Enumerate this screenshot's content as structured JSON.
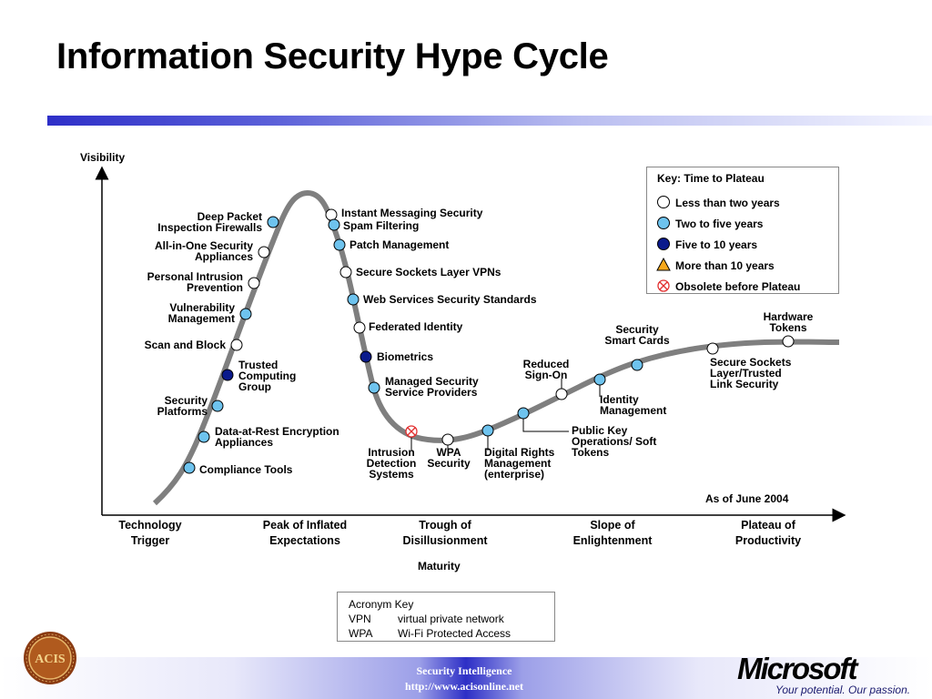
{
  "title": "Information Security Hype Cycle",
  "axes": {
    "y_label": "Visibility",
    "x_label": "Maturity",
    "as_of": "As of June 2004"
  },
  "phases": [
    {
      "line1": "Technology",
      "line2": "Trigger"
    },
    {
      "line1": "Peak of Inflated",
      "line2": "Expectations"
    },
    {
      "line1": "Trough of",
      "line2": "Disillusionment"
    },
    {
      "line1": "Slope of",
      "line2": "Enlightenment"
    },
    {
      "line1": "Plateau of",
      "line2": "Productivity"
    }
  ],
  "key": {
    "title": "Key: Time to Plateau",
    "items": [
      {
        "symbol": "white-circle-icon",
        "label": "Less than two years",
        "color": "#ffffff"
      },
      {
        "symbol": "light-blue-circle-icon",
        "label": "Two to five years",
        "color": "#6ec3ee"
      },
      {
        "symbol": "dark-blue-circle-icon",
        "label": "Five to 10 years",
        "color": "#0a1a8c"
      },
      {
        "symbol": "orange-triangle-icon",
        "label": "More than 10 years",
        "color": "#f7a81b"
      },
      {
        "symbol": "red-crossed-circle-icon",
        "label": "Obsolete before Plateau",
        "color": "#e23030"
      }
    ]
  },
  "technologies": [
    {
      "name": "Compliance Tools",
      "lines": [
        "Compliance Tools"
      ],
      "category": "two_to_five"
    },
    {
      "name": "Data-at-Rest Encryption Appliances",
      "lines": [
        "Data-at-Rest Encryption",
        "Appliances"
      ],
      "category": "two_to_five"
    },
    {
      "name": "Security Platforms",
      "lines": [
        "Security",
        "Platforms"
      ],
      "category": "two_to_five"
    },
    {
      "name": "Trusted Computing Group",
      "lines": [
        "Trusted",
        "Computing",
        "Group"
      ],
      "category": "five_to_ten"
    },
    {
      "name": "Scan and Block",
      "lines": [
        "Scan and Block"
      ],
      "category": "less_than_two"
    },
    {
      "name": "Vulnerability Management",
      "lines": [
        "Vulnerability",
        "Management"
      ],
      "category": "two_to_five"
    },
    {
      "name": "Personal Intrusion Prevention",
      "lines": [
        "Personal Intrusion",
        "Prevention"
      ],
      "category": "less_than_two"
    },
    {
      "name": "All-in-One Security Appliances",
      "lines": [
        "All-in-One Security",
        "Appliances"
      ],
      "category": "less_than_two"
    },
    {
      "name": "Deep Packet Inspection Firewalls",
      "lines": [
        "Deep Packet",
        "Inspection Firewalls"
      ],
      "category": "two_to_five"
    },
    {
      "name": "Instant Messaging Security",
      "lines": [
        "Instant Messaging Security"
      ],
      "category": "less_than_two"
    },
    {
      "name": "Spam Filtering",
      "lines": [
        "Spam Filtering"
      ],
      "category": "two_to_five"
    },
    {
      "name": "Patch Management",
      "lines": [
        "Patch Management"
      ],
      "category": "two_to_five"
    },
    {
      "name": "Secure Sockets Layer VPNs",
      "lines": [
        "Secure Sockets Layer VPNs"
      ],
      "category": "less_than_two"
    },
    {
      "name": "Web Services Security Standards",
      "lines": [
        "Web Services Security Standards"
      ],
      "category": "two_to_five"
    },
    {
      "name": "Federated Identity",
      "lines": [
        "Federated Identity"
      ],
      "category": "less_than_two"
    },
    {
      "name": "Biometrics",
      "lines": [
        "Biometrics"
      ],
      "category": "five_to_ten"
    },
    {
      "name": "Managed Security Service Providers",
      "lines": [
        "Managed Security",
        "Service Providers"
      ],
      "category": "two_to_five"
    },
    {
      "name": "Intrusion Detection Systems",
      "lines": [
        "Intrusion",
        "Detection",
        "Systems"
      ],
      "category": "obsolete"
    },
    {
      "name": "WPA Security",
      "lines": [
        "WPA",
        "Security"
      ],
      "category": "less_than_two"
    },
    {
      "name": "Digital Rights Management (enterprise)",
      "lines": [
        "Digital Rights",
        "Management",
        "(enterprise)"
      ],
      "category": "two_to_five"
    },
    {
      "name": "Public Key Operations/ Soft Tokens",
      "lines": [
        "Public Key",
        "Operations/ Soft",
        "Tokens"
      ],
      "category": "two_to_five"
    },
    {
      "name": "Reduced Sign-On",
      "lines": [
        "Reduced",
        "Sign-On"
      ],
      "category": "less_than_two"
    },
    {
      "name": "Identity Management",
      "lines": [
        "Identity",
        "Management"
      ],
      "category": "two_to_five"
    },
    {
      "name": "Security Smart Cards",
      "lines": [
        "Security",
        "Smart Cards"
      ],
      "category": "two_to_five"
    },
    {
      "name": "Secure Sockets Layer/Trusted Link Security",
      "lines": [
        "Secure Sockets",
        "Layer/Trusted",
        "Link Security"
      ],
      "category": "less_than_two"
    },
    {
      "name": "Hardware Tokens",
      "lines": [
        "Hardware",
        "Tokens"
      ],
      "category": "less_than_two"
    }
  ],
  "acronym_key": {
    "title": "Acronym Key",
    "items": [
      {
        "abbr": "VPN",
        "definition": "virtual private network"
      },
      {
        "abbr": "WPA",
        "definition": "Wi-Fi Protected Access"
      }
    ]
  },
  "footer": {
    "line1": "Security Intelligence",
    "line2": "http://www.acisonline.net",
    "logo_left": "ACIS",
    "logo_right": "Microsoft",
    "tagline": "Your potential. Our passion."
  },
  "colors": {
    "curve": "#7f7f7f",
    "less_than_two": "#ffffff",
    "two_to_five": "#6ec3ee",
    "five_to_ten": "#0a1a8c",
    "obsolete": "#e23030",
    "title_bar": "#2e2fc8"
  }
}
